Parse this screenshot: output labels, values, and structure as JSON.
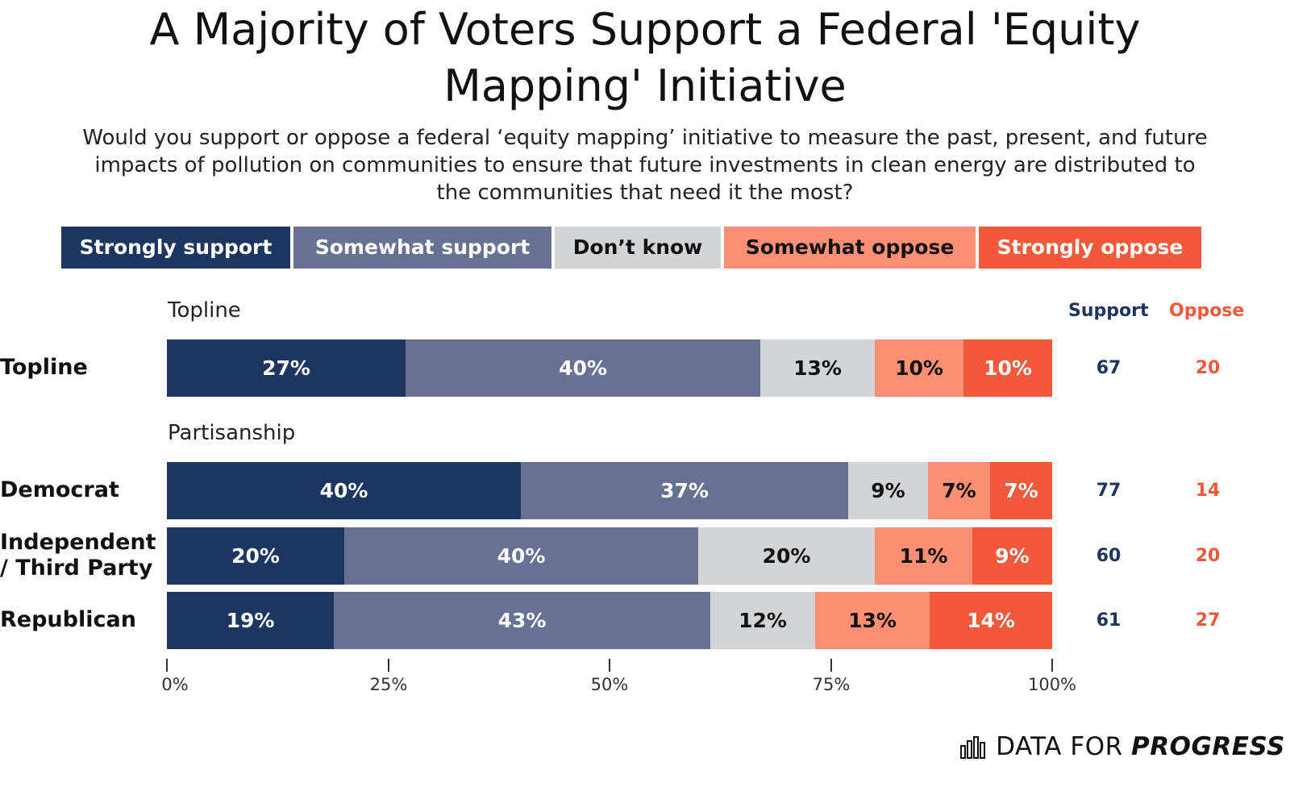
{
  "title": "A Majority of Voters Support a Federal 'Equity Mapping' Initiative",
  "title_line1": "A Majority of Voters Support a Federal 'Equity",
  "title_line2": "Mapping' Initiative",
  "subtitle_line1": "Would you support or oppose a federal ‘equity mapping’ initiative to measure the past, present, and future",
  "subtitle_line2": "impacts of pollution on communities to ensure that future investments in clean energy are distributed to",
  "subtitle_line3": "the communities that need it the most?",
  "colors": {
    "strongly_support": "#1c3661",
    "somewhat_support": "#677293",
    "dont_know": "#d3d4d6",
    "somewhat_oppose": "#fd8f74",
    "strongly_oppose": "#f2593a",
    "support_text": "#1c3661",
    "oppose_text": "#f2593a"
  },
  "legend": [
    "Strongly support",
    "Somewhat support",
    "Don’t know",
    "Somewhat oppose",
    "Strongly oppose"
  ],
  "column_headers": {
    "support": "Support",
    "oppose": "Oppose"
  },
  "group_labels": {
    "topline": "Topline",
    "partisanship": "Partisanship"
  },
  "axis_ticks": [
    "0%",
    "25%",
    "50%",
    "75%",
    "100%"
  ],
  "logo": {
    "text_plain": "DATA FOR",
    "text_emph": "PROGRESS",
    "icon": "bar-chart-icon"
  },
  "chart_data": {
    "type": "bar",
    "orientation": "horizontal",
    "stacked": true,
    "xlim": [
      0,
      100
    ],
    "series_names": [
      "Strongly support",
      "Somewhat support",
      "Don’t know",
      "Somewhat oppose",
      "Strongly oppose"
    ],
    "groups": [
      {
        "name": "Topline",
        "rows": [
          {
            "label": "Topline",
            "values": [
              27,
              40,
              13,
              10,
              10
            ],
            "support": "67",
            "oppose": "20"
          }
        ]
      },
      {
        "name": "Partisanship",
        "rows": [
          {
            "label": "Democrat",
            "values": [
              40,
              37,
              9,
              7,
              7
            ],
            "support": "77",
            "oppose": "14"
          },
          {
            "label": "Independent / Third Party",
            "label_line1": "Independent",
            "label_line2": "/ Third Party",
            "values": [
              20,
              40,
              20,
              11,
              9
            ],
            "support": "60",
            "oppose": "20"
          },
          {
            "label": "Republican",
            "values": [
              19,
              43,
              12,
              13,
              14
            ],
            "support": "61",
            "oppose": "27"
          }
        ]
      }
    ]
  }
}
